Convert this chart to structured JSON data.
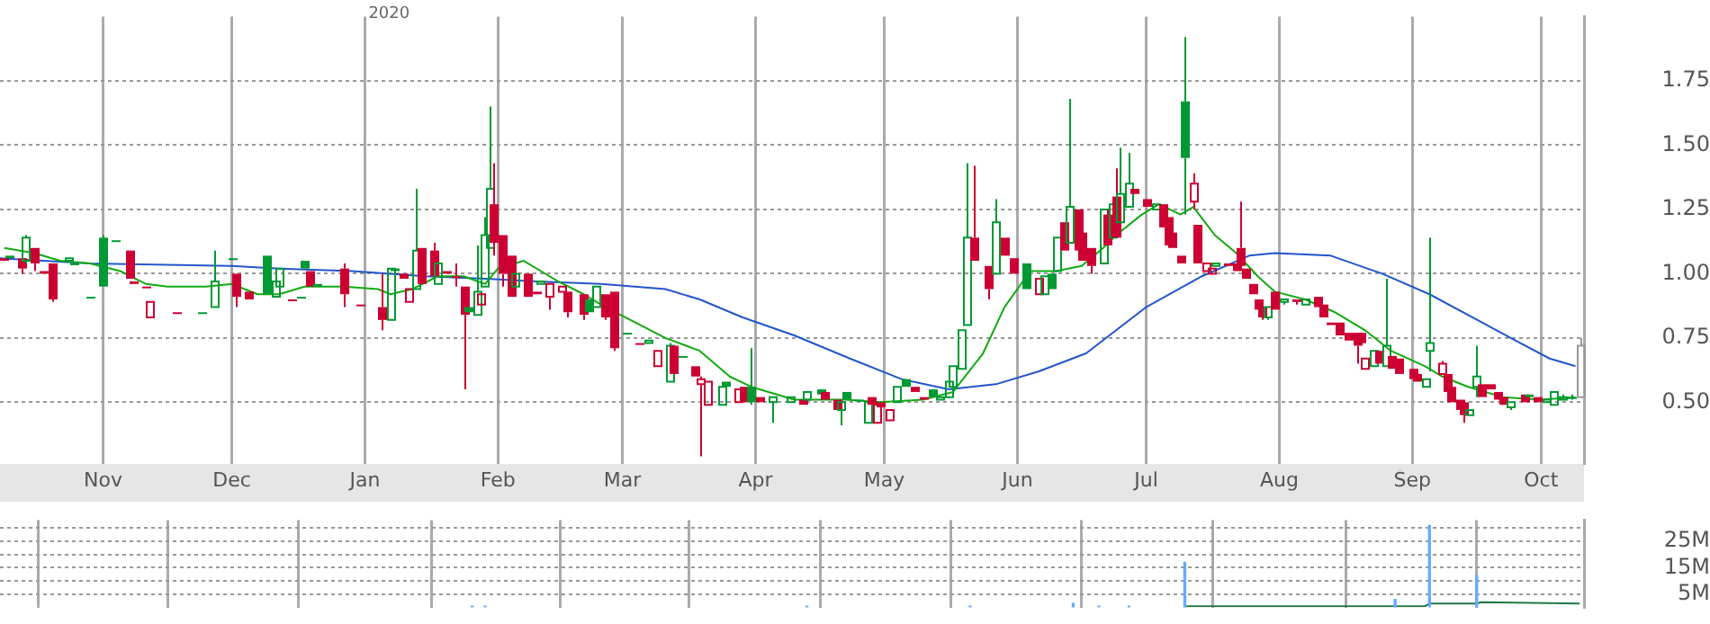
{
  "chart_data": [
    {
      "type": "candlestick",
      "annotations": [
        "2020"
      ],
      "grid": true,
      "marker": "none",
      "xlim": [
        "2019-10-08",
        "2020-10-11"
      ],
      "xticks": [
        {
          "value": "2019-11-01",
          "label": "Nov"
        },
        {
          "value": "2019-12-01",
          "label": "Dec"
        },
        {
          "value": "2020-01-01",
          "label": "Jan"
        },
        {
          "value": "2020-02-01",
          "label": "Feb"
        },
        {
          "value": "2020-03-01",
          "label": "Mar"
        },
        {
          "value": "2020-04-01",
          "label": "Apr"
        },
        {
          "value": "2020-05-01",
          "label": "May"
        },
        {
          "value": "2020-06-01",
          "label": "Jun"
        },
        {
          "value": "2020-07-01",
          "label": "Jul"
        },
        {
          "value": "2020-08-01",
          "label": "Aug"
        },
        {
          "value": "2020-09-01",
          "label": "Sep"
        },
        {
          "value": "2020-10-01",
          "label": "Oct"
        }
      ],
      "ylim": [
        0.26,
        2.0
      ],
      "yticks": [
        {
          "value": 0.5,
          "label": "0.50"
        },
        0.75,
        {
          "value": 1.0,
          "label": "1.00"
        },
        1.25,
        {
          "value": 1.5,
          "label": "1.50"
        },
        1.75
      ],
      "x": [
        "2019-10-09",
        "2019-10-10",
        "2019-10-13",
        "2019-10-14",
        "2019-10-16",
        "2019-10-18",
        "2019-10-20",
        "2019-10-24",
        "2019-10-25",
        "2019-10-29",
        "2019-11-01",
        "2019-11-04",
        "2019-11-07",
        "2019-11-08",
        "2019-11-11",
        "2019-11-12",
        "2019-11-18",
        "2019-11-24",
        "2019-11-27",
        "2019-12-01",
        "2019-12-02",
        "2019-12-05",
        "2019-12-09",
        "2019-12-11",
        "2019-12-12",
        "2019-12-15",
        "2019-12-17",
        "2019-12-18",
        "2019-12-19",
        "2019-12-21",
        "2019-12-27",
        "2019-12-31",
        "2020-01-05",
        "2020-01-07",
        "2020-01-08",
        "2020-01-10",
        "2020-01-11",
        "2020-01-13",
        "2020-01-14",
        "2020-01-17",
        "2020-01-18",
        "2020-01-20",
        "2020-01-22",
        "2020-01-24",
        "2020-01-25",
        "2020-01-27",
        "2020-01-28",
        "2020-01-29",
        "2020-01-30",
        "2020-01-31",
        "2020-02-02",
        "2020-02-04",
        "2020-02-05",
        "2020-02-08",
        "2020-02-10",
        "2020-02-11",
        "2020-02-13",
        "2020-02-16",
        "2020-02-17",
        "2020-02-21",
        "2020-02-22",
        "2020-02-24",
        "2020-02-26",
        "2020-02-28",
        "2020-03-02",
        "2020-03-05",
        "2020-03-07",
        "2020-03-09",
        "2020-03-12",
        "2020-03-13",
        "2020-03-15",
        "2020-03-18",
        "2020-03-19",
        "2020-03-21",
        "2020-03-24",
        "2020-03-25",
        "2020-03-28",
        "2020-03-29",
        "2020-03-31",
        "2020-04-02",
        "2020-04-05",
        "2020-04-09",
        "2020-04-12",
        "2020-04-13",
        "2020-04-16",
        "2020-04-17",
        "2020-04-20",
        "2020-04-21",
        "2020-04-22",
        "2020-04-25",
        "2020-04-27",
        "2020-04-28",
        "2020-04-29",
        "2020-04-30",
        "2020-05-02",
        "2020-05-04",
        "2020-05-06",
        "2020-05-08",
        "2020-05-10",
        "2020-05-12",
        "2020-05-14",
        "2020-05-16",
        "2020-05-17",
        "2020-05-19",
        "2020-05-20",
        "2020-05-22",
        "2020-05-25",
        "2020-05-27",
        "2020-05-29",
        "2020-05-31",
        "2020-06-03",
        "2020-06-06",
        "2020-06-07",
        "2020-06-09",
        "2020-06-10",
        "2020-06-12",
        "2020-06-13",
        "2020-06-15",
        "2020-06-16",
        "2020-06-18",
        "2020-06-21",
        "2020-06-22",
        "2020-06-23",
        "2020-06-24",
        "2020-06-25",
        "2020-06-27",
        "2020-06-28",
        "2020-07-01",
        "2020-07-03",
        "2020-07-05",
        "2020-07-06",
        "2020-07-07",
        "2020-07-09",
        "2020-07-10",
        "2020-07-12",
        "2020-07-13",
        "2020-07-15",
        "2020-07-16",
        "2020-07-17",
        "2020-07-20",
        "2020-07-22",
        "2020-07-23",
        "2020-07-24",
        "2020-07-26",
        "2020-07-27",
        "2020-07-28",
        "2020-07-29",
        "2020-07-31",
        "2020-08-02",
        "2020-08-05",
        "2020-08-07",
        "2020-08-10",
        "2020-08-11",
        "2020-08-13",
        "2020-08-15",
        "2020-08-17",
        "2020-08-19",
        "2020-08-20",
        "2020-08-21",
        "2020-08-23",
        "2020-08-24",
        "2020-08-26",
        "2020-08-27",
        "2020-08-29",
        "2020-09-01",
        "2020-09-02",
        "2020-09-04",
        "2020-09-05",
        "2020-09-08",
        "2020-09-09",
        "2020-09-10",
        "2020-09-12",
        "2020-09-13",
        "2020-09-14",
        "2020-09-16",
        "2020-09-17",
        "2020-09-19",
        "2020-09-21",
        "2020-09-22",
        "2020-09-24",
        "2020-09-27",
        "2020-09-28",
        "2020-09-30",
        "2020-10-02",
        "2020-10-04",
        "2020-10-06",
        "2020-10-08",
        "2020-10-10"
      ],
      "ohlc": [
        [
          1.06,
          1.06,
          1.05,
          1.05
        ],
        [
          1.07,
          1.07,
          1.06,
          1.06
        ],
        [
          1.06,
          1.06,
          1.0,
          1.02
        ],
        [
          1.05,
          1.15,
          1.04,
          1.14
        ],
        [
          1.1,
          1.1,
          1.01,
          1.04
        ],
        [
          1.01,
          1.01,
          1.0,
          1.0
        ],
        [
          1.04,
          1.04,
          0.89,
          0.9
        ],
        [
          1.05,
          1.06,
          1.05,
          1.06
        ],
        [
          1.04,
          1.04,
          1.04,
          1.04
        ],
        [
          0.91,
          0.91,
          0.91,
          0.91
        ],
        [
          1.14,
          1.15,
          0.95,
          0.95
        ],
        [
          1.13,
          1.13,
          1.13,
          1.13
        ],
        [
          1.09,
          1.09,
          0.98,
          0.98
        ],
        [
          0.97,
          0.97,
          0.96,
          0.96
        ],
        [
          0.95,
          0.95,
          0.95,
          0.95
        ],
        [
          0.83,
          0.89,
          0.83,
          0.89
        ],
        [
          0.85,
          0.85,
          0.85,
          0.85
        ],
        [
          0.85,
          0.85,
          0.85,
          0.85
        ],
        [
          0.87,
          1.09,
          0.87,
          0.97
        ],
        [
          1.06,
          1.06,
          1.06,
          1.06
        ],
        [
          1.0,
          1.0,
          0.87,
          0.91
        ],
        [
          0.93,
          0.93,
          0.9,
          0.9
        ],
        [
          1.07,
          1.07,
          0.92,
          0.92
        ],
        [
          0.91,
          0.97,
          0.91,
          0.97
        ],
        [
          0.95,
          1.02,
          0.95,
          1.02
        ],
        [
          0.9,
          0.9,
          0.9,
          0.9
        ],
        [
          0.91,
          0.91,
          0.91,
          0.91
        ],
        [
          1.05,
          1.05,
          1.02,
          1.02
        ],
        [
          1.01,
          1.01,
          0.95,
          0.95
        ],
        [
          0.96,
          0.96,
          0.95,
          0.95
        ],
        [
          1.02,
          1.04,
          0.87,
          0.92
        ],
        [
          0.88,
          0.88,
          0.88,
          0.88
        ],
        [
          0.87,
          1.0,
          0.78,
          0.82
        ],
        [
          0.82,
          1.02,
          0.82,
          1.02
        ],
        [
          1.02,
          1.02,
          1.01,
          1.01
        ],
        [
          1.0,
          1.0,
          0.98,
          0.98
        ],
        [
          0.89,
          0.94,
          0.89,
          0.94
        ],
        [
          0.94,
          1.33,
          0.94,
          1.09
        ],
        [
          1.1,
          1.1,
          0.96,
          0.96
        ],
        [
          1.09,
          1.12,
          0.99,
          0.99
        ],
        [
          0.96,
          1.04,
          0.96,
          1.04
        ],
        [
          1.01,
          1.01,
          1.0,
          1.0
        ],
        [
          0.99,
          1.04,
          0.95,
          0.99
        ],
        [
          0.95,
          0.95,
          0.55,
          0.84
        ],
        [
          0.87,
          0.87,
          0.85,
          0.85
        ],
        [
          0.84,
          1.11,
          0.84,
          0.93
        ],
        [
          0.88,
          0.92,
          0.88,
          0.92
        ],
        [
          0.95,
          1.22,
          0.95,
          1.15
        ],
        [
          1.1,
          1.65,
          1.1,
          1.33
        ],
        [
          1.27,
          1.43,
          1.07,
          1.12
        ],
        [
          1.15,
          1.15,
          0.95,
          1.0
        ],
        [
          1.07,
          1.07,
          0.91,
          0.91
        ],
        [
          0.95,
          1.0,
          0.95,
          1.0
        ],
        [
          1.0,
          1.0,
          0.91,
          0.91
        ],
        [
          0.93,
          0.93,
          0.92,
          0.92
        ],
        [
          0.96,
          0.97,
          0.96,
          0.97
        ],
        [
          0.91,
          0.96,
          0.86,
          0.96
        ],
        [
          0.93,
          0.95,
          0.93,
          0.95
        ],
        [
          0.93,
          0.93,
          0.83,
          0.85
        ],
        [
          0.92,
          0.92,
          0.82,
          0.84
        ],
        [
          0.9,
          0.9,
          0.85,
          0.85
        ],
        [
          0.87,
          0.95,
          0.87,
          0.95
        ],
        [
          0.92,
          0.92,
          0.82,
          0.83
        ],
        [
          0.93,
          0.93,
          0.7,
          0.71
        ],
        [
          0.77,
          0.77,
          0.77,
          0.77
        ],
        [
          0.73,
          0.73,
          0.73,
          0.73
        ],
        [
          0.73,
          0.74,
          0.73,
          0.74
        ],
        [
          0.64,
          0.7,
          0.64,
          0.7
        ],
        [
          0.58,
          0.73,
          0.58,
          0.72
        ],
        [
          0.72,
          0.72,
          0.61,
          0.61
        ],
        [
          0.68,
          0.68,
          0.68,
          0.68
        ],
        [
          0.64,
          0.64,
          0.6,
          0.6
        ],
        [
          0.57,
          0.6,
          0.29,
          0.59
        ],
        [
          0.49,
          0.58,
          0.49,
          0.58
        ],
        [
          0.49,
          0.56,
          0.49,
          0.56
        ],
        [
          0.58,
          0.58,
          0.56,
          0.56
        ],
        [
          0.5,
          0.55,
          0.5,
          0.55
        ],
        [
          0.56,
          0.56,
          0.5,
          0.5
        ],
        [
          0.56,
          0.71,
          0.49,
          0.5
        ],
        [
          0.52,
          0.52,
          0.5,
          0.5
        ],
        [
          0.5,
          0.52,
          0.42,
          0.52
        ],
        [
          0.5,
          0.52,
          0.5,
          0.52
        ],
        [
          0.51,
          0.51,
          0.49,
          0.49
        ],
        [
          0.51,
          0.54,
          0.51,
          0.54
        ],
        [
          0.55,
          0.55,
          0.52,
          0.53
        ],
        [
          0.54,
          0.54,
          0.51,
          0.51
        ],
        [
          0.51,
          0.51,
          0.47,
          0.47
        ],
        [
          0.47,
          0.5,
          0.41,
          0.5
        ],
        [
          0.54,
          0.54,
          0.51,
          0.51
        ],
        [
          0.51,
          0.51,
          0.51,
          0.51
        ],
        [
          0.42,
          0.5,
          0.42,
          0.5
        ],
        [
          0.52,
          0.52,
          0.49,
          0.49
        ],
        [
          0.42,
          0.49,
          0.42,
          0.49
        ],
        [
          0.5,
          0.5,
          0.48,
          0.48
        ],
        [
          0.43,
          0.47,
          0.43,
          0.47
        ],
        [
          0.5,
          0.56,
          0.5,
          0.56
        ],
        [
          0.59,
          0.59,
          0.56,
          0.56
        ],
        [
          0.56,
          0.56,
          0.54,
          0.54
        ],
        [
          0.52,
          0.52,
          0.51,
          0.51
        ],
        [
          0.55,
          0.55,
          0.52,
          0.52
        ],
        [
          0.51,
          0.52,
          0.51,
          0.52
        ],
        [
          0.52,
          0.58,
          0.52,
          0.58
        ],
        [
          0.56,
          0.64,
          0.56,
          0.64
        ],
        [
          0.63,
          0.78,
          0.63,
          0.78
        ],
        [
          0.8,
          1.43,
          0.8,
          1.14
        ],
        [
          1.14,
          1.42,
          1.05,
          1.05
        ],
        [
          1.03,
          1.03,
          0.9,
          0.94
        ],
        [
          1.0,
          1.29,
          1.0,
          1.2
        ],
        [
          1.14,
          1.14,
          1.07,
          1.07
        ],
        [
          1.06,
          1.06,
          1.0,
          1.0
        ],
        [
          1.04,
          1.04,
          0.94,
          0.94
        ],
        [
          0.92,
          0.98,
          0.92,
          0.98
        ],
        [
          0.92,
          0.99,
          0.92,
          0.99
        ],
        [
          1.0,
          1.0,
          0.94,
          0.94
        ],
        [
          1.01,
          1.14,
          1.01,
          1.14
        ],
        [
          1.2,
          1.2,
          1.09,
          1.09
        ],
        [
          1.12,
          1.68,
          1.12,
          1.26
        ],
        [
          1.25,
          1.25,
          1.09,
          1.09
        ],
        [
          1.16,
          1.16,
          1.05,
          1.05
        ],
        [
          1.1,
          1.1,
          1.0,
          1.03
        ],
        [
          1.04,
          1.25,
          1.04,
          1.25
        ],
        [
          1.23,
          1.25,
          1.11,
          1.11
        ],
        [
          1.14,
          1.29,
          1.14,
          1.27
        ],
        [
          1.3,
          1.41,
          1.14,
          1.14
        ],
        [
          1.2,
          1.49,
          1.2,
          1.31
        ],
        [
          1.26,
          1.47,
          1.26,
          1.35
        ],
        [
          1.33,
          1.33,
          1.31,
          1.31
        ],
        [
          1.29,
          1.29,
          1.26,
          1.26
        ],
        [
          1.25,
          1.27,
          1.25,
          1.27
        ],
        [
          1.27,
          1.27,
          1.18,
          1.18
        ],
        [
          1.22,
          1.22,
          1.11,
          1.11
        ],
        [
          1.16,
          1.16,
          1.1,
          1.1
        ],
        [
          1.07,
          1.07,
          1.04,
          1.04
        ],
        [
          1.67,
          1.92,
          1.23,
          1.45
        ],
        [
          1.28,
          1.39,
          1.25,
          1.35
        ],
        [
          1.19,
          1.19,
          1.04,
          1.04
        ],
        [
          1.01,
          1.04,
          1.01,
          1.04
        ],
        [
          1.0,
          1.02,
          1.0,
          1.02
        ],
        [
          1.03,
          1.04,
          1.03,
          1.04
        ],
        [
          1.04,
          1.04,
          1.03,
          1.03
        ],
        [
          1.04,
          1.04,
          1.01,
          1.01
        ],
        [
          1.1,
          1.28,
          1.03,
          1.03
        ],
        [
          1.02,
          1.02,
          0.98,
          0.98
        ],
        [
          0.96,
          0.96,
          0.92,
          0.92
        ],
        [
          0.9,
          0.9,
          0.86,
          0.86
        ],
        [
          0.87,
          0.87,
          0.82,
          0.83
        ],
        [
          0.83,
          0.87,
          0.82,
          0.87
        ],
        [
          0.93,
          0.93,
          0.86,
          0.86
        ],
        [
          0.89,
          0.9,
          0.88,
          0.9
        ],
        [
          0.9,
          0.9,
          0.88,
          0.89
        ],
        [
          0.88,
          0.9,
          0.88,
          0.9
        ],
        [
          0.91,
          0.91,
          0.87,
          0.87
        ],
        [
          0.88,
          0.88,
          0.83,
          0.83
        ],
        [
          0.81,
          0.81,
          0.8,
          0.8
        ],
        [
          0.81,
          0.81,
          0.76,
          0.76
        ],
        [
          0.77,
          0.77,
          0.74,
          0.74
        ],
        [
          0.77,
          0.77,
          0.65,
          0.72
        ],
        [
          0.77,
          0.77,
          0.73,
          0.73
        ],
        [
          0.63,
          0.67,
          0.63,
          0.67
        ],
        [
          0.64,
          0.7,
          0.64,
          0.7
        ],
        [
          0.7,
          0.7,
          0.65,
          0.65
        ],
        [
          0.64,
          0.98,
          0.64,
          0.72
        ],
        [
          0.68,
          0.68,
          0.63,
          0.63
        ],
        [
          0.67,
          0.67,
          0.61,
          0.61
        ],
        [
          0.63,
          0.63,
          0.59,
          0.59
        ],
        [
          0.61,
          0.61,
          0.58,
          0.58
        ],
        [
          0.56,
          0.59,
          0.56,
          0.59
        ],
        [
          0.7,
          1.14,
          0.62,
          0.73
        ],
        [
          0.61,
          0.66,
          0.61,
          0.65
        ],
        [
          0.61,
          0.61,
          0.54,
          0.54
        ],
        [
          0.56,
          0.56,
          0.5,
          0.5
        ],
        [
          0.51,
          0.51,
          0.46,
          0.47
        ],
        [
          0.5,
          0.5,
          0.42,
          0.45
        ],
        [
          0.45,
          0.47,
          0.45,
          0.47
        ],
        [
          0.56,
          0.72,
          0.52,
          0.6
        ],
        [
          0.57,
          0.57,
          0.52,
          0.52
        ],
        [
          0.57,
          0.57,
          0.55,
          0.55
        ],
        [
          0.54,
          0.54,
          0.51,
          0.51
        ],
        [
          0.52,
          0.52,
          0.49,
          0.49
        ],
        [
          0.48,
          0.5,
          0.47,
          0.5
        ],
        [
          0.53,
          0.53,
          0.5,
          0.5
        ],
        [
          0.53,
          0.53,
          0.52,
          0.52
        ],
        [
          0.52,
          0.52,
          0.5,
          0.5
        ],
        [
          0.5,
          0.51,
          0.5,
          0.51
        ],
        [
          0.49,
          0.54,
          0.49,
          0.54
        ],
        [
          0.51,
          0.53,
          0.51,
          0.52
        ],
        [
          0.52,
          0.53,
          0.51,
          0.52
        ],
        [
          0.52,
          0.75,
          0.52,
          0.72
        ]
      ],
      "colors": [
        "#cc0033",
        "#009933",
        "#cc0033",
        "#009933",
        "#cc0033",
        "#cc0033",
        "#cc0033",
        "#009933",
        "#009933",
        "#009933",
        "#009933",
        "#009933",
        "#cc0033",
        "#cc0033",
        "#cc0033",
        "#cc0033",
        "#cc0033",
        "#009933",
        "#009933",
        "#009933",
        "#cc0033",
        "#cc0033",
        "#009933",
        "#009933",
        "#009933",
        "#cc0033",
        "#009933",
        "#009933",
        "#cc0033",
        "#009933",
        "#cc0033",
        "#cc0033",
        "#cc0033",
        "#009933",
        "#009933",
        "#cc0033",
        "#cc0033",
        "#009933",
        "#cc0033",
        "#cc0033",
        "#009933",
        "#cc0033",
        "#cc0033",
        "#cc0033",
        "#009933",
        "#009933",
        "#cc0033",
        "#009933",
        "#009933",
        "#cc0033",
        "#cc0033",
        "#cc0033",
        "#009933",
        "#cc0033",
        "#cc0033",
        "#009933",
        "#cc0033",
        "#cc0033",
        "#cc0033",
        "#cc0033",
        "#009933",
        "#009933",
        "#cc0033",
        "#cc0033",
        "#009933",
        "#cc0033",
        "#009933",
        "#cc0033",
        "#009933",
        "#cc0033",
        "#009933",
        "#cc0033",
        "#cc0033",
        "#cc0033",
        "#009933",
        "#009933",
        "#cc0033",
        "#cc0033",
        "#009933",
        "#cc0033",
        "#009933",
        "#009933",
        "#cc0033",
        "#009933",
        "#009933",
        "#cc0033",
        "#cc0033",
        "#009933",
        "#009933",
        "#009933",
        "#009933",
        "#cc0033",
        "#cc0033",
        "#cc0033",
        "#cc0033",
        "#009933",
        "#009933",
        "#cc0033",
        "#cc0033",
        "#009933",
        "#009933",
        "#009933",
        "#009933",
        "#009933",
        "#009933",
        "#cc0033",
        "#cc0033",
        "#009933",
        "#cc0033",
        "#cc0033",
        "#009933",
        "#cc0033",
        "#009933",
        "#009933",
        "#009933",
        "#cc0033",
        "#009933",
        "#cc0033",
        "#cc0033",
        "#cc0033",
        "#009933",
        "#cc0033",
        "#009933",
        "#cc0033",
        "#009933",
        "#009933",
        "#cc0033",
        "#cc0033",
        "#009933",
        "#cc0033",
        "#cc0033",
        "#cc0033",
        "#cc0033",
        "#009933",
        "#cc0033",
        "#cc0033",
        "#cc0033",
        "#cc0033",
        "#009933",
        "#cc0033",
        "#cc0033",
        "#cc0033",
        "#cc0033",
        "#cc0033",
        "#cc0033",
        "#cc0033",
        "#009933",
        "#cc0033",
        "#009933",
        "#cc0033",
        "#009933",
        "#cc0033",
        "#cc0033",
        "#cc0033",
        "#cc0033",
        "#cc0033",
        "#cc0033",
        "#cc0033",
        "#cc0033",
        "#009933",
        "#cc0033",
        "#009933",
        "#cc0033",
        "#cc0033",
        "#cc0033",
        "#cc0033",
        "#009933",
        "#009933",
        "#cc0033",
        "#cc0033",
        "#cc0033",
        "#cc0033",
        "#cc0033",
        "#009933",
        "#009933",
        "#cc0033",
        "#cc0033",
        "#cc0033",
        "#cc0033",
        "#009933",
        "#cc0033",
        "#009933",
        "#cc0033",
        "#009933",
        "#009933",
        "#009933",
        "#009933",
        "#999999"
      ],
      "series": [
        {
          "type": "line",
          "color": "#11aa11",
          "x": [
            "2019-10-09",
            "2019-10-16",
            "2019-10-22",
            "2019-10-29",
            "2019-11-05",
            "2019-11-11",
            "2019-11-16",
            "2019-11-25",
            "2019-12-01",
            "2019-12-07",
            "2019-12-12",
            "2019-12-18",
            "2019-12-27",
            "2020-01-04",
            "2020-01-07",
            "2020-01-12",
            "2020-01-18",
            "2020-01-24",
            "2020-01-29",
            "2020-02-01",
            "2020-02-07",
            "2020-02-11",
            "2020-02-15",
            "2020-02-21",
            "2020-02-26",
            "2020-03-04",
            "2020-03-11",
            "2020-03-19",
            "2020-03-26",
            "2020-03-31",
            "2020-04-10",
            "2020-04-22",
            "2020-04-30",
            "2020-05-10",
            "2020-05-17",
            "2020-05-24",
            "2020-05-29",
            "2020-06-04",
            "2020-06-10",
            "2020-06-16",
            "2020-06-21",
            "2020-06-24",
            "2020-06-30",
            "2020-07-04",
            "2020-07-09",
            "2020-07-12",
            "2020-07-17",
            "2020-07-22",
            "2020-07-27",
            "2020-07-31",
            "2020-08-07",
            "2020-08-14",
            "2020-08-21",
            "2020-08-27",
            "2020-09-04",
            "2020-09-08",
            "2020-09-14",
            "2020-09-22",
            "2020-10-01",
            "2020-10-09"
          ],
          "values": [
            1.1,
            1.08,
            1.05,
            1.04,
            1.01,
            0.96,
            0.95,
            0.95,
            0.96,
            0.92,
            0.92,
            0.95,
            0.95,
            0.94,
            0.92,
            0.94,
            0.99,
            0.99,
            0.96,
            1.02,
            1.05,
            1.01,
            0.97,
            0.92,
            0.87,
            0.81,
            0.75,
            0.7,
            0.6,
            0.56,
            0.51,
            0.51,
            0.5,
            0.51,
            0.54,
            0.69,
            0.87,
            1.01,
            1.01,
            1.03,
            1.1,
            1.15,
            1.23,
            1.27,
            1.23,
            1.26,
            1.15,
            1.08,
            0.99,
            0.93,
            0.9,
            0.85,
            0.78,
            0.7,
            0.64,
            0.6,
            0.56,
            0.52,
            0.51,
            0.52
          ]
        },
        {
          "type": "line",
          "color": "#2255cc",
          "x": [
            "2019-10-08",
            "2019-10-29",
            "2019-12-01",
            "2019-12-12",
            "2019-12-29",
            "2020-01-15",
            "2020-01-29",
            "2020-02-10",
            "2020-02-25",
            "2020-03-11",
            "2020-03-19",
            "2020-03-29",
            "2020-04-10",
            "2020-04-23",
            "2020-05-05",
            "2020-05-16",
            "2020-05-27",
            "2020-06-06",
            "2020-06-17",
            "2020-07-01",
            "2020-07-14",
            "2020-07-25",
            "2020-07-31",
            "2020-08-13",
            "2020-08-25",
            "2020-09-05",
            "2020-09-15",
            "2020-09-25",
            "2020-10-03",
            "2020-10-09"
          ],
          "values": [
            1.06,
            1.04,
            1.03,
            1.02,
            1.01,
            0.99,
            0.98,
            0.97,
            0.96,
            0.94,
            0.9,
            0.83,
            0.76,
            0.67,
            0.59,
            0.55,
            0.57,
            0.62,
            0.69,
            0.87,
            0.99,
            1.07,
            1.08,
            1.07,
            1.0,
            0.92,
            0.83,
            0.74,
            0.67,
            0.64
          ]
        }
      ]
    },
    {
      "type": "bar",
      "grid": true,
      "marker": "none",
      "tick_labels": "y",
      "xlim": [
        "2019-10-08",
        "2020-10-11"
      ],
      "xticks": [
        {
          "value": "2019-11-01",
          "label": null
        },
        {
          "value": "2019-12-01",
          "label": null
        },
        {
          "value": "2020-01-01",
          "label": null
        },
        {
          "value": "2020-02-01",
          "label": null
        },
        {
          "value": "2020-03-01",
          "label": null
        },
        {
          "value": "2020-04-01",
          "label": null
        },
        {
          "value": "2020-05-01",
          "label": null
        },
        {
          "value": "2020-06-01",
          "label": null
        },
        {
          "value": "2020-07-01",
          "label": null
        },
        {
          "value": "2020-08-01",
          "label": null
        },
        {
          "value": "2020-09-01",
          "label": null
        },
        {
          "value": "2020-10-01",
          "label": null
        }
      ],
      "ylim": [
        0,
        33
      ],
      "yticks": [
        {
          "value": 5,
          "label": "5M"
        },
        {
          "value": 10,
          "label": null
        },
        {
          "value": 15,
          "label": "15M"
        },
        {
          "value": 20,
          "label": null
        },
        {
          "value": 25,
          "label": "25M"
        },
        {
          "value": 30,
          "label": null
        }
      ],
      "series": [
        {
          "type": "bar",
          "color": "#66aaff",
          "x": [
            "2020-01-26",
            "2020-01-29",
            "2020-04-13",
            "2020-05-21",
            "2020-06-14",
            "2020-06-20",
            "2020-06-27",
            "2020-07-10",
            "2020-08-28",
            "2020-09-05",
            "2020-09-16"
          ],
          "values": [
            0.5,
            0.5,
            0.5,
            0.5,
            1.5,
            0.5,
            0.5,
            17,
            3,
            31,
            12
          ]
        },
        {
          "type": "line",
          "color": "#227744",
          "x": [
            "2020-07-10",
            "2020-09-04",
            "2020-09-05",
            "2020-09-16",
            "2020-09-17",
            "2020-10-10"
          ],
          "values": [
            0.5,
            0.5,
            1.5,
            1.5,
            2,
            1.5
          ]
        }
      ]
    }
  ]
}
